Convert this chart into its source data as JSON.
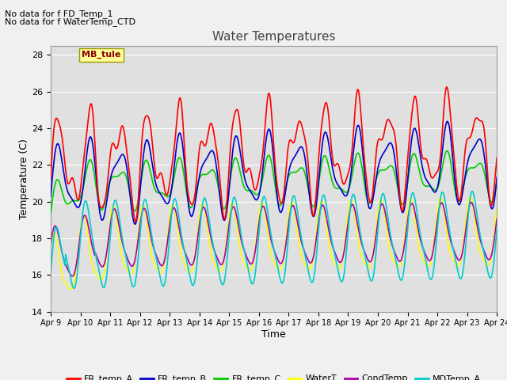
{
  "title": "Water Temperatures",
  "xlabel": "Time",
  "ylabel": "Temperature (C)",
  "ylim": [
    14,
    28.5
  ],
  "yticks": [
    14,
    16,
    18,
    20,
    22,
    24,
    26,
    28
  ],
  "x_labels": [
    "Apr 9",
    "Apr 10",
    "Apr 11",
    "Apr 12",
    "Apr 13",
    "Apr 14",
    "Apr 15",
    "Apr 16",
    "Apr 17",
    "Apr 18",
    "Apr 19",
    "Apr 20",
    "Apr 21",
    "Apr 22",
    "Apr 23",
    "Apr 24"
  ],
  "annotation_lines": [
    "No data for f FD_Temp_1",
    "No data for f WaterTemp_CTD"
  ],
  "mb_tule_label": "MB_tule",
  "series": {
    "FR_temp_A": {
      "color": "#ff0000",
      "linewidth": 1.2
    },
    "FR_temp_B": {
      "color": "#0000cc",
      "linewidth": 1.2
    },
    "FR_temp_C": {
      "color": "#00cc00",
      "linewidth": 1.2
    },
    "WaterT": {
      "color": "#ffff00",
      "linewidth": 1.2
    },
    "CondTemp": {
      "color": "#aa00aa",
      "linewidth": 1.2
    },
    "MDTemp_A": {
      "color": "#00cccc",
      "linewidth": 1.2
    }
  },
  "background_color": "#f0f0f0",
  "plot_bg_color": "#e0e0e0",
  "grid_color": "#ffffff",
  "days": 15,
  "num_points": 720
}
